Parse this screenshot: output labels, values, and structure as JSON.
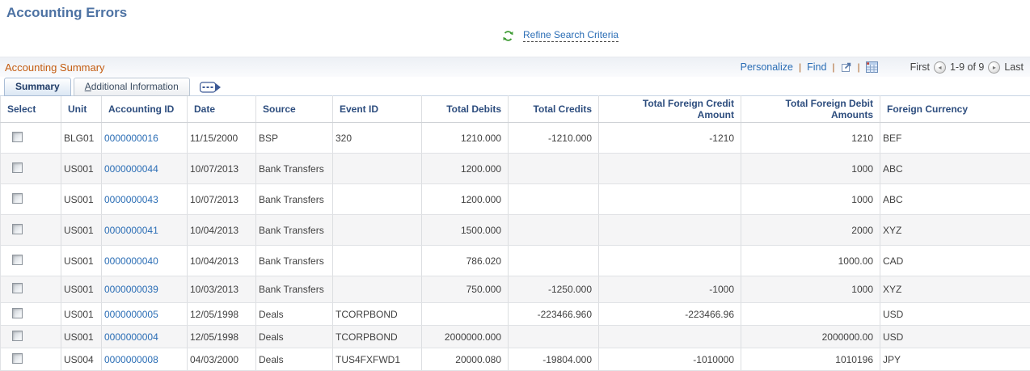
{
  "colors": {
    "title_blue": "#4d72a3",
    "accent_orange": "#c45c10",
    "link_blue": "#2a6db5",
    "header_navy": "#2d4d7e",
    "refresh_green": "#3f9c35"
  },
  "page": {
    "title": "Accounting Errors"
  },
  "refine": {
    "label": "Refine Search Criteria",
    "icon": "refresh-icon"
  },
  "grid": {
    "title": "Accounting Summary",
    "actions": {
      "personalize": "Personalize",
      "find": "Find",
      "separator": "|",
      "icons": [
        "popup-icon",
        "excel-grid-icon"
      ]
    },
    "pagination": {
      "first": "First",
      "range": "1-9 of 9",
      "last": "Last",
      "prev_glyph": "◂",
      "next_glyph": "▸"
    },
    "tabs": [
      {
        "label": "Summary",
        "active": true
      },
      {
        "label": "Additional Information",
        "active": false,
        "underline_first": true
      }
    ],
    "show_tabs_icon": "show-tabs-icon",
    "columns": [
      {
        "label": "Select",
        "align": "left"
      },
      {
        "label": "Unit",
        "align": "left"
      },
      {
        "label": "Accounting ID",
        "align": "left"
      },
      {
        "label": "Date",
        "align": "left"
      },
      {
        "label": "Source",
        "align": "left"
      },
      {
        "label": "Event ID",
        "align": "left"
      },
      {
        "label": "Total Debits",
        "align": "right"
      },
      {
        "label": "Total Credits",
        "align": "right"
      },
      {
        "label": "Total Foreign Credit Amount",
        "align": "right"
      },
      {
        "label": "Total Foreign Debit Amounts",
        "align": "right"
      },
      {
        "label": "Foreign Currency",
        "align": "left"
      }
    ],
    "rows": [
      {
        "unit": "BLG01",
        "accounting_id": "0000000016",
        "date": "11/15/2000",
        "source": "BSP",
        "event_id": "320",
        "total_debits": "1210.000",
        "total_credits": "-1210.000",
        "total_foreign_credit": "-1210",
        "total_foreign_debit": "1210",
        "currency": "BEF"
      },
      {
        "unit": "US001",
        "accounting_id": "0000000044",
        "date": "10/07/2013",
        "source": "Bank Transfers",
        "event_id": "",
        "total_debits": "1200.000",
        "total_credits": "",
        "total_foreign_credit": "",
        "total_foreign_debit": "1000",
        "currency": "ABC"
      },
      {
        "unit": "US001",
        "accounting_id": "0000000043",
        "date": "10/07/2013",
        "source": "Bank Transfers",
        "event_id": "",
        "total_debits": "1200.000",
        "total_credits": "",
        "total_foreign_credit": "",
        "total_foreign_debit": "1000",
        "currency": "ABC"
      },
      {
        "unit": "US001",
        "accounting_id": "0000000041",
        "date": "10/04/2013",
        "source": "Bank Transfers",
        "event_id": "",
        "total_debits": "1500.000",
        "total_credits": "",
        "total_foreign_credit": "",
        "total_foreign_debit": "2000",
        "currency": "XYZ"
      },
      {
        "unit": "US001",
        "accounting_id": "0000000040",
        "date": "10/04/2013",
        "source": "Bank Transfers",
        "event_id": "",
        "total_debits": "786.020",
        "total_credits": "",
        "total_foreign_credit": "",
        "total_foreign_debit": "1000.00",
        "currency": "CAD"
      },
      {
        "unit": "US001",
        "accounting_id": "0000000039",
        "date": "10/03/2013",
        "source": "Bank Transfers",
        "event_id": "",
        "total_debits": "750.000",
        "total_credits": "-1250.000",
        "total_foreign_credit": "-1000",
        "total_foreign_debit": "1000",
        "currency": "XYZ"
      },
      {
        "unit": "US001",
        "accounting_id": "0000000005",
        "date": "12/05/1998",
        "source": "Deals",
        "event_id": "TCORPBOND",
        "total_debits": "",
        "total_credits": "-223466.960",
        "total_foreign_credit": "-223466.96",
        "total_foreign_debit": "",
        "currency": "USD"
      },
      {
        "unit": "US001",
        "accounting_id": "0000000004",
        "date": "12/05/1998",
        "source": "Deals",
        "event_id": "TCORPBOND",
        "total_debits": "2000000.000",
        "total_credits": "",
        "total_foreign_credit": "",
        "total_foreign_debit": "2000000.00",
        "currency": "USD"
      },
      {
        "unit": "US004",
        "accounting_id": "0000000008",
        "date": "04/03/2000",
        "source": "Deals",
        "event_id": "TUS4FXFWD1",
        "total_debits": "20000.080",
        "total_credits": "-19804.000",
        "total_foreign_credit": "-1010000",
        "total_foreign_debit": "1010196",
        "currency": "JPY"
      }
    ]
  }
}
